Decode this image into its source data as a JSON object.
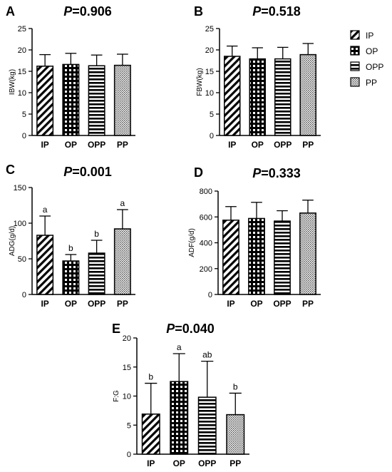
{
  "legend": {
    "entries": [
      {
        "label": "IP",
        "pattern": "diag"
      },
      {
        "label": "OP",
        "pattern": "check"
      },
      {
        "label": "OPP",
        "pattern": "hstripe"
      },
      {
        "label": "PP",
        "pattern": "dots"
      }
    ]
  },
  "chart_data": [
    {
      "panel": "A",
      "p_prefix": "P",
      "p_value": "=0.906",
      "type": "bar",
      "ylabel": "IBW(kg)",
      "ylim": [
        0,
        25
      ],
      "yticks": [
        0,
        5,
        10,
        15,
        20,
        25
      ],
      "categories": [
        "IP",
        "OP",
        "OPP",
        "PP"
      ],
      "values": [
        16.2,
        16.6,
        16.3,
        16.4
      ],
      "errors": [
        2.7,
        2.6,
        2.5,
        2.6
      ],
      "sig_letters": [
        "",
        "",
        "",
        ""
      ]
    },
    {
      "panel": "B",
      "p_prefix": "P",
      "p_value": "=0.518",
      "type": "bar",
      "ylabel": "FBW(kg)",
      "ylim": [
        0,
        25
      ],
      "yticks": [
        0,
        5,
        10,
        15,
        20,
        25
      ],
      "categories": [
        "IP",
        "OP",
        "OPP",
        "PP"
      ],
      "values": [
        18.5,
        17.9,
        17.9,
        18.9
      ],
      "errors": [
        2.4,
        2.6,
        2.7,
        2.6
      ],
      "sig_letters": [
        "",
        "",
        "",
        ""
      ]
    },
    {
      "panel": "C",
      "p_prefix": "P",
      "p_value": "=0.001",
      "type": "bar",
      "ylabel": "ADG(g/d)",
      "ylim": [
        0,
        150
      ],
      "yticks": [
        0,
        50,
        100,
        150
      ],
      "categories": [
        "IP",
        "OP",
        "OPP",
        "PP"
      ],
      "values": [
        83,
        47,
        58,
        92
      ],
      "errors": [
        27,
        9,
        18,
        27
      ],
      "sig_letters": [
        "a",
        "b",
        "b",
        "a"
      ]
    },
    {
      "panel": "D",
      "p_prefix": "P",
      "p_value": "=0.333",
      "type": "bar",
      "ylabel": "ADF(g/d)",
      "ylim": [
        0,
        800
      ],
      "yticks": [
        0,
        200,
        400,
        600,
        800
      ],
      "categories": [
        "IP",
        "OP",
        "OPP",
        "PP"
      ],
      "values": [
        575,
        588,
        568,
        630
      ],
      "errors": [
        105,
        125,
        80,
        100
      ],
      "sig_letters": [
        "",
        "",
        "",
        ""
      ]
    },
    {
      "panel": "E",
      "p_prefix": "P",
      "p_value": "=0.040",
      "type": "bar",
      "ylabel": "F:G",
      "ylim": [
        0,
        20
      ],
      "yticks": [
        0,
        5,
        10,
        15,
        20
      ],
      "categories": [
        "IP",
        "OP",
        "OPP",
        "PP"
      ],
      "values": [
        6.9,
        12.5,
        9.8,
        6.8
      ],
      "errors": [
        5.3,
        4.8,
        6.2,
        3.7
      ],
      "sig_letters": [
        "b",
        "a",
        "ab",
        "b"
      ]
    }
  ]
}
